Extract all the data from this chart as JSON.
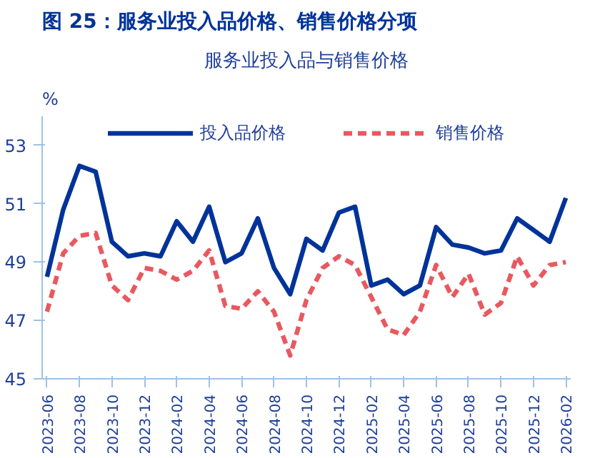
{
  "chart_data": {
    "type": "line",
    "title": "图 25：服务业投入品价格、销售价格分项",
    "subtitle": "服务业投入品与销售价格",
    "ylabel": "%",
    "categories": [
      "2023-06",
      null,
      "2023-08",
      null,
      "2023-10",
      null,
      "2023-12",
      null,
      "2024-02",
      null,
      "2024-04",
      null,
      "2024-06",
      null,
      "2024-08",
      null,
      "2024-10",
      null,
      "2024-12",
      null,
      "2025-02",
      null,
      "2025-04",
      null,
      "2025-06",
      null,
      "2025-08",
      null,
      "2025-10",
      null,
      "2025-12",
      null,
      "2026-02"
    ],
    "series": [
      {
        "name": "投入品价格",
        "color": "#003399",
        "line_style": "solid",
        "values": [
          48.5,
          50.8,
          52.3,
          52.1,
          49.7,
          49.2,
          49.3,
          49.2,
          50.4,
          49.7,
          50.9,
          49.0,
          49.3,
          50.5,
          48.8,
          47.9,
          49.8,
          49.4,
          50.7,
          50.9,
          48.2,
          48.4,
          47.9,
          48.2,
          50.2,
          49.6,
          49.5,
          49.3,
          49.4,
          50.5,
          50.1,
          49.7,
          51.2
        ]
      },
      {
        "name": "销售价格",
        "color": "#e8595f",
        "line_style": "dashed",
        "values": [
          47.3,
          49.3,
          49.9,
          50.0,
          48.2,
          47.7,
          48.8,
          48.7,
          48.4,
          48.7,
          49.4,
          47.5,
          47.4,
          48.0,
          47.3,
          45.8,
          47.7,
          48.8,
          49.2,
          48.9,
          47.8,
          46.7,
          46.5,
          47.3,
          48.9,
          47.8,
          48.6,
          47.2,
          47.6,
          49.2,
          48.2,
          48.9,
          49.0
        ]
      }
    ],
    "ylim": [
      45,
      54
    ],
    "yticks": [
      45,
      47,
      49,
      51,
      53
    ],
    "grid": false,
    "legend": "top"
  }
}
